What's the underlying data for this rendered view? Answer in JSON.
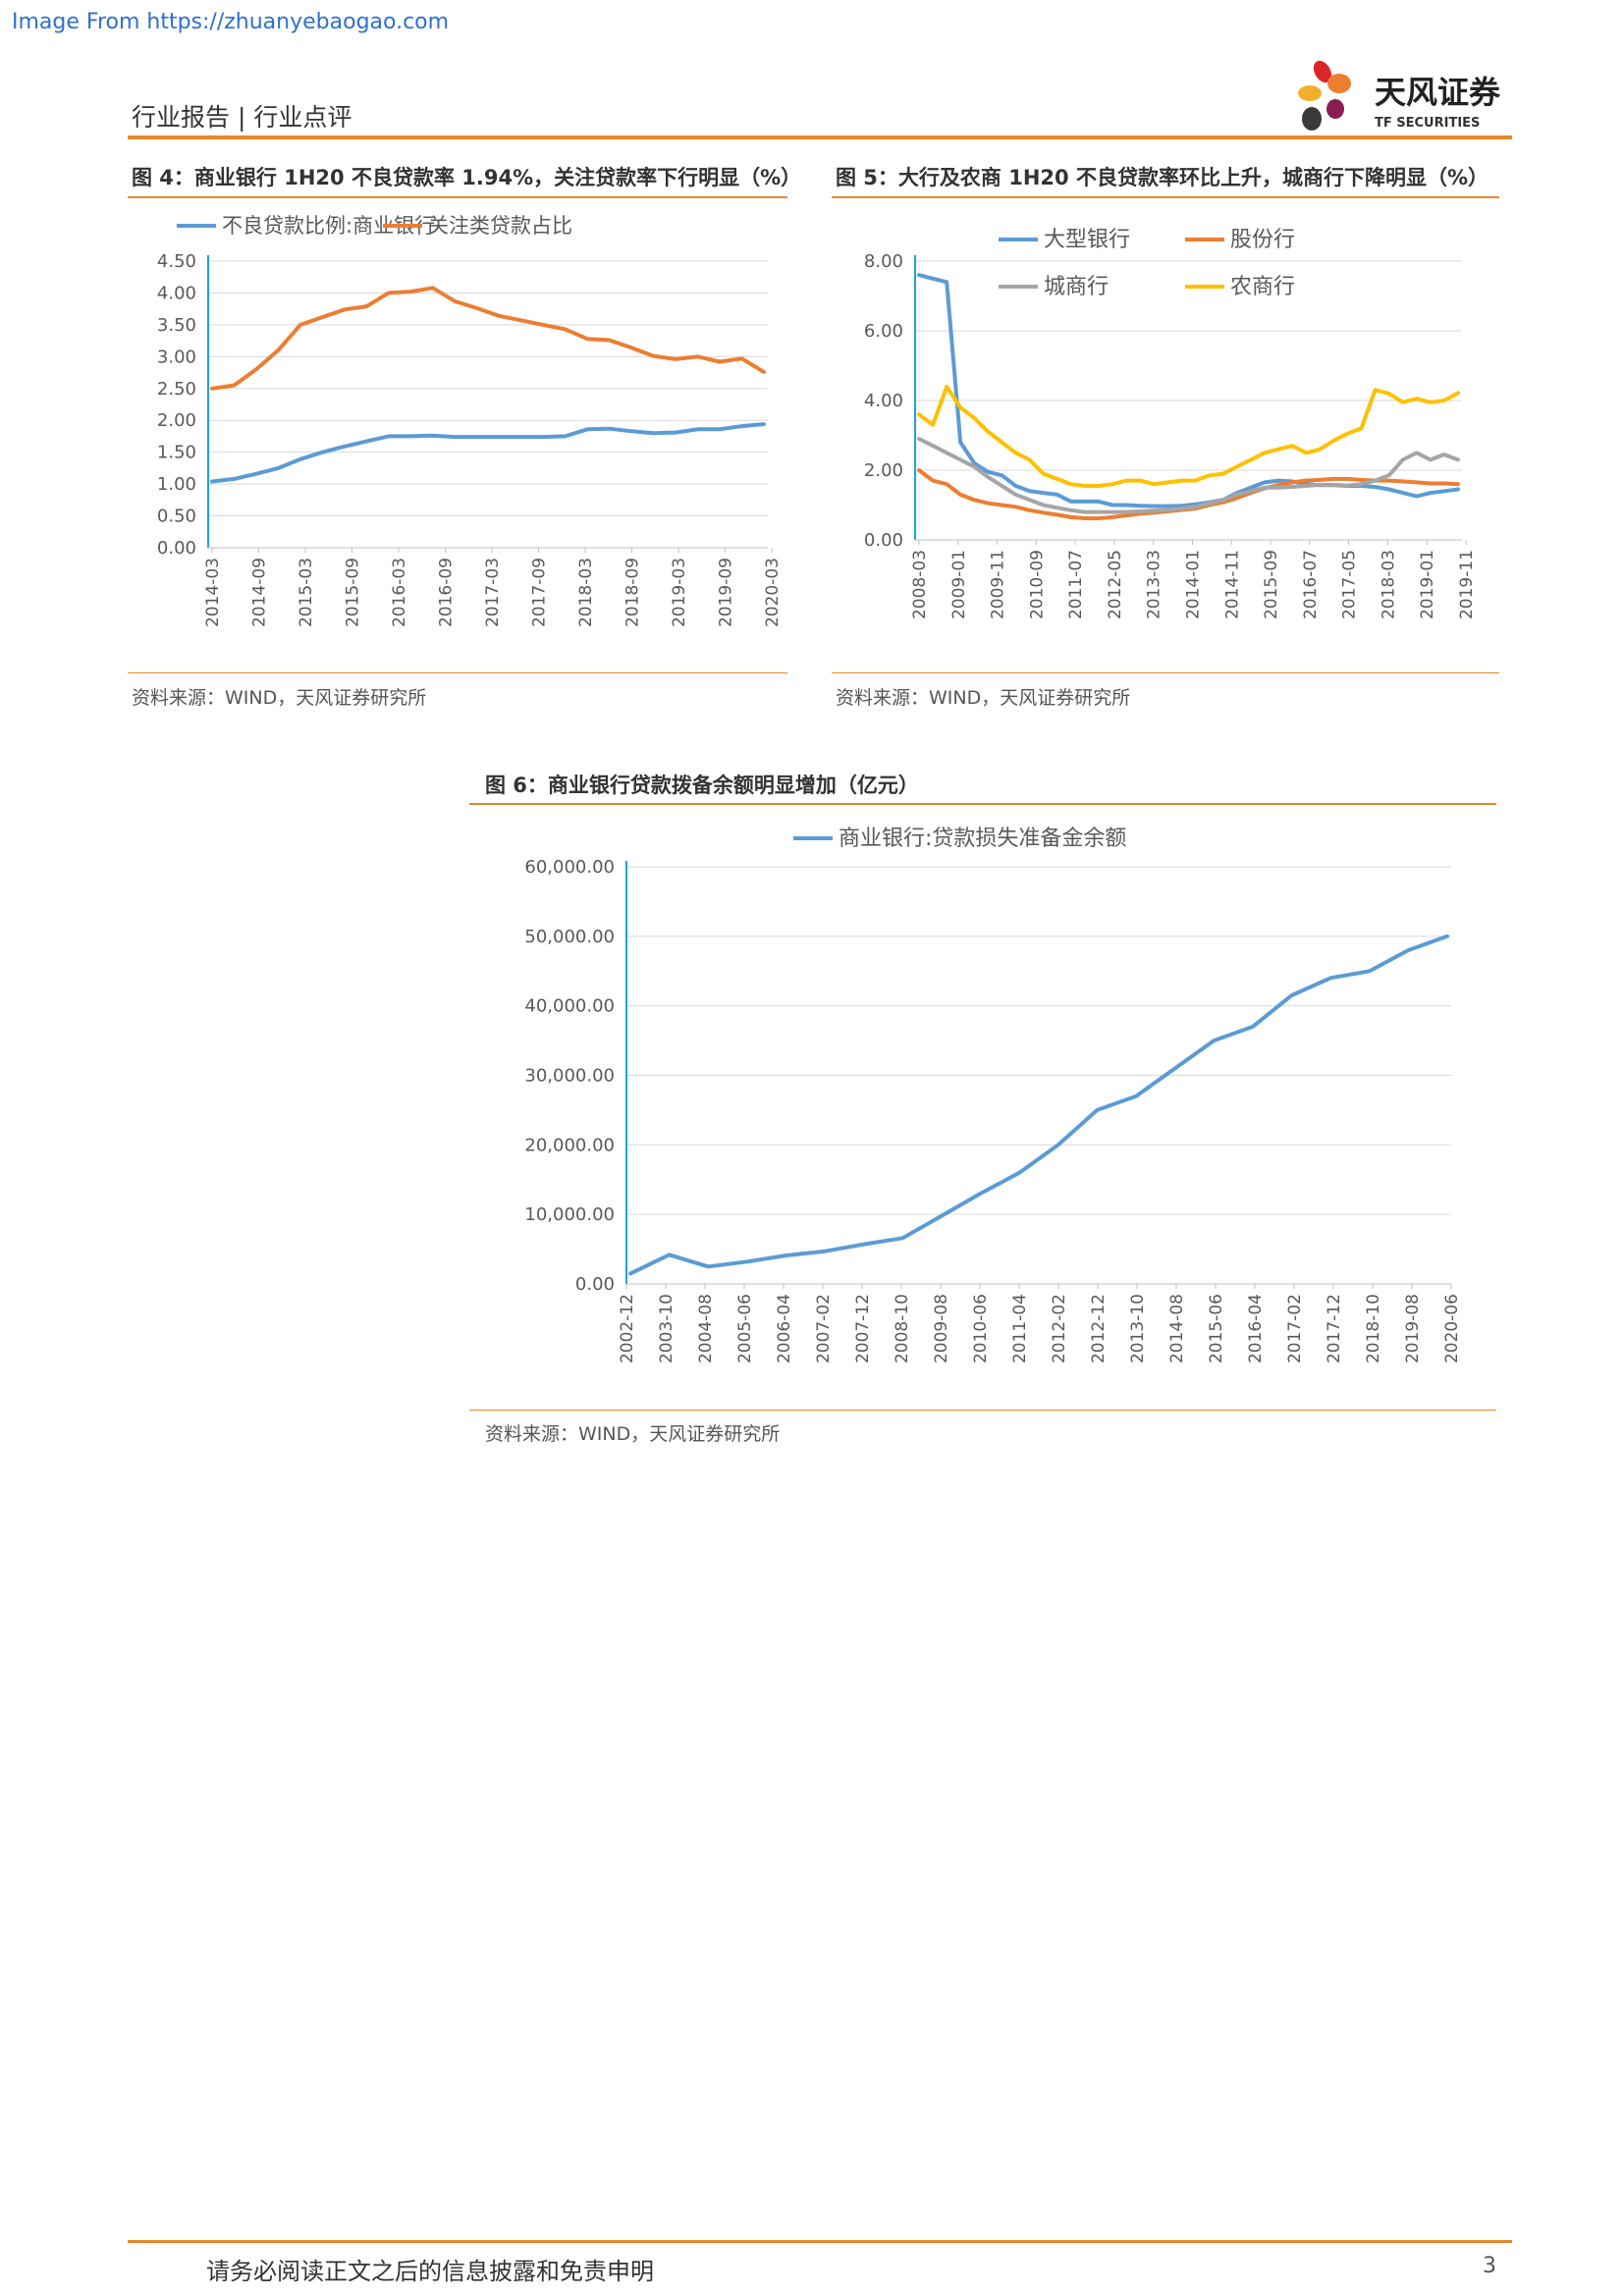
{
  "source_link": "Image From https://zhuanyebaogao.com",
  "header": {
    "title": "行业报告 | 行业点评"
  },
  "logo": {
    "name": "天风证券",
    "sub": "TF SECURITIES"
  },
  "footer": {
    "note": "请务必阅读正文之后的信息披露和免责申明",
    "page": "3"
  },
  "colors": {
    "blue": "#5b9bd5",
    "orange": "#ed7d31",
    "gray": "#a5a5a5",
    "yellow": "#ffc000",
    "accent": "#e6892a"
  },
  "chart_data": [
    {
      "type": "line",
      "title": "图 4：商业银行 1H20 不良贷款率 1.94%，关注贷款率下行明显（%）",
      "caption": "资料来源：WIND，天风证券研究所",
      "x_labels": [
        "2014-03",
        "2014-09",
        "2015-03",
        "2015-09",
        "2016-03",
        "2016-09",
        "2017-03",
        "2017-09",
        "2018-03",
        "2018-09",
        "2019-03",
        "2019-09",
        "2020-03"
      ],
      "y_ticks": [
        "0.00",
        "0.50",
        "1.00",
        "1.50",
        "2.00",
        "2.50",
        "3.00",
        "3.50",
        "4.00",
        "4.50"
      ],
      "ylim": [
        0,
        4.5
      ],
      "legend_position": "top",
      "series": [
        {
          "name": "不良贷款比例:商业银行",
          "color": "#5b9bd5",
          "values": [
            1.04,
            1.08,
            1.16,
            1.25,
            1.39,
            1.5,
            1.59,
            1.67,
            1.75,
            1.75,
            1.76,
            1.74,
            1.74,
            1.74,
            1.74,
            1.74,
            1.75,
            1.86,
            1.87,
            1.83,
            1.8,
            1.81,
            1.86,
            1.86,
            1.91,
            1.94
          ]
        },
        {
          "name": "关注类贷款占比",
          "color": "#ed7d31",
          "values": [
            2.5,
            2.55,
            2.8,
            3.1,
            3.5,
            3.62,
            3.74,
            3.79,
            4.0,
            4.02,
            4.08,
            3.87,
            3.76,
            3.64,
            3.57,
            3.5,
            3.43,
            3.28,
            3.26,
            3.14,
            3.01,
            2.96,
            3.0,
            2.92,
            2.97,
            2.76
          ]
        }
      ]
    },
    {
      "type": "line",
      "title": "图 5：大行及农商 1H20 不良贷款率环比上升，城商行下降明显（%）",
      "caption": "资料来源：WIND，天风证券研究所",
      "x_labels": [
        "2008-03",
        "2009-01",
        "2009-11",
        "2010-09",
        "2011-07",
        "2012-05",
        "2013-03",
        "2014-01",
        "2014-11",
        "2015-09",
        "2016-07",
        "2017-05",
        "2018-03",
        "2019-01",
        "2019-11"
      ],
      "y_ticks": [
        "0.00",
        "2.00",
        "4.00",
        "6.00",
        "8.00"
      ],
      "ylim": [
        0,
        8
      ],
      "legend_position": "top",
      "series": [
        {
          "name": "大型银行",
          "color": "#5b9bd5",
          "values": [
            7.6,
            7.5,
            7.4,
            2.8,
            2.2,
            1.95,
            1.85,
            1.55,
            1.4,
            1.35,
            1.3,
            1.1,
            1.1,
            1.1,
            1.0,
            1.0,
            0.98,
            0.97,
            0.97,
            0.98,
            1.02,
            1.08,
            1.15,
            1.35,
            1.5,
            1.65,
            1.7,
            1.68,
            1.6,
            1.57,
            1.57,
            1.55,
            1.55,
            1.52,
            1.45,
            1.35,
            1.25,
            1.35,
            1.4,
            1.45
          ]
        },
        {
          "name": "股份行",
          "color": "#ed7d31",
          "values": [
            2.0,
            1.7,
            1.6,
            1.3,
            1.15,
            1.05,
            1.0,
            0.95,
            0.85,
            0.78,
            0.72,
            0.65,
            0.62,
            0.62,
            0.65,
            0.7,
            0.75,
            0.78,
            0.82,
            0.86,
            0.9,
            1.0,
            1.08,
            1.2,
            1.35,
            1.48,
            1.58,
            1.65,
            1.7,
            1.72,
            1.75,
            1.75,
            1.72,
            1.7,
            1.7,
            1.68,
            1.65,
            1.62,
            1.62,
            1.6
          ]
        },
        {
          "name": "城商行",
          "color": "#a5a5a5",
          "values": [
            2.9,
            2.7,
            2.5,
            2.3,
            2.1,
            1.8,
            1.55,
            1.3,
            1.15,
            1.0,
            0.92,
            0.85,
            0.8,
            0.8,
            0.8,
            0.8,
            0.82,
            0.84,
            0.86,
            0.9,
            0.95,
            1.05,
            1.15,
            1.3,
            1.4,
            1.5,
            1.5,
            1.52,
            1.55,
            1.58,
            1.58,
            1.56,
            1.6,
            1.7,
            1.85,
            2.3,
            2.5,
            2.3,
            2.45,
            2.3
          ]
        },
        {
          "name": "农商行",
          "color": "#ffc000",
          "values": [
            3.6,
            3.3,
            4.4,
            3.8,
            3.5,
            3.1,
            2.8,
            2.5,
            2.3,
            1.9,
            1.75,
            1.6,
            1.55,
            1.55,
            1.6,
            1.7,
            1.7,
            1.6,
            1.65,
            1.7,
            1.7,
            1.85,
            1.9,
            2.1,
            2.3,
            2.5,
            2.6,
            2.7,
            2.5,
            2.6,
            2.85,
            3.05,
            3.2,
            4.3,
            4.2,
            3.95,
            4.05,
            3.95,
            4.0,
            4.22
          ]
        }
      ]
    },
    {
      "type": "line",
      "title": "图 6：商业银行贷款拨备余额明显增加（亿元）",
      "caption": "资料来源：WIND，天风证券研究所",
      "x_labels": [
        "2002-12",
        "2003-10",
        "2004-08",
        "2005-06",
        "2006-04",
        "2007-02",
        "2007-12",
        "2008-10",
        "2009-08",
        "2010-06",
        "2011-04",
        "2012-02",
        "2012-12",
        "2013-10",
        "2014-08",
        "2015-06",
        "2016-04",
        "2017-02",
        "2017-12",
        "2018-10",
        "2019-08",
        "2020-06"
      ],
      "y_ticks": [
        "0.00",
        "10,000.00",
        "20,000.00",
        "30,000.00",
        "40,000.00",
        "50,000.00",
        "60,000.00"
      ],
      "ylim": [
        0,
        60000
      ],
      "legend_position": "top",
      "series": [
        {
          "name": "商业银行:贷款损失准备金余额",
          "color": "#5b9bd5",
          "values": [
            1500,
            4200,
            2500,
            3200,
            4100,
            4700,
            5700,
            6600,
            9800,
            13000,
            16000,
            20000,
            25000,
            27000,
            31000,
            35000,
            37000,
            41500,
            44000,
            45000,
            48000,
            50000
          ]
        }
      ]
    }
  ]
}
